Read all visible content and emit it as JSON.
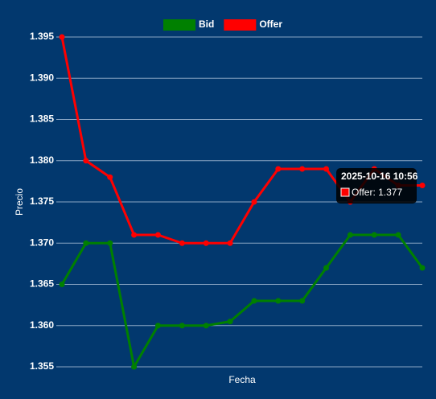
{
  "chart_data": {
    "type": "line",
    "x_label": "Fecha",
    "y_label": "Precio",
    "categories": [
      null,
      null,
      null,
      null,
      null,
      null,
      null,
      null,
      null,
      null,
      null,
      null,
      null,
      null,
      null,
      null
    ],
    "series": [
      {
        "name": "Bid",
        "color": "#008000",
        "values": [
          1.365,
          1.37,
          1.37,
          1.355,
          1.36,
          1.36,
          1.36,
          1.3605,
          1.363,
          1.363,
          1.363,
          1.367,
          1.371,
          1.371,
          1.371,
          1.367
        ]
      },
      {
        "name": "Offer",
        "color": "#ff0000",
        "values": [
          1.395,
          1.38,
          1.378,
          1.371,
          1.371,
          1.37,
          1.37,
          1.37,
          1.375,
          1.379,
          1.379,
          1.379,
          1.375,
          1.379,
          1.377,
          1.377
        ]
      }
    ],
    "ylim": [
      1.355,
      1.395
    ],
    "yticks": [
      1.355,
      {
        "value": 1.36,
        "label": "1.360"
      },
      1.365,
      {
        "value": 1.37,
        "label": "1.370"
      },
      1.375,
      {
        "value": 1.38,
        "label": "1.380"
      },
      1.385,
      {
        "value": 1.39,
        "label": "1.390"
      },
      1.395
    ],
    "grid": true,
    "legend": "top",
    "tooltip": {
      "title": "2025-10-16 10:56",
      "label": "Offer: 1.377"
    }
  }
}
